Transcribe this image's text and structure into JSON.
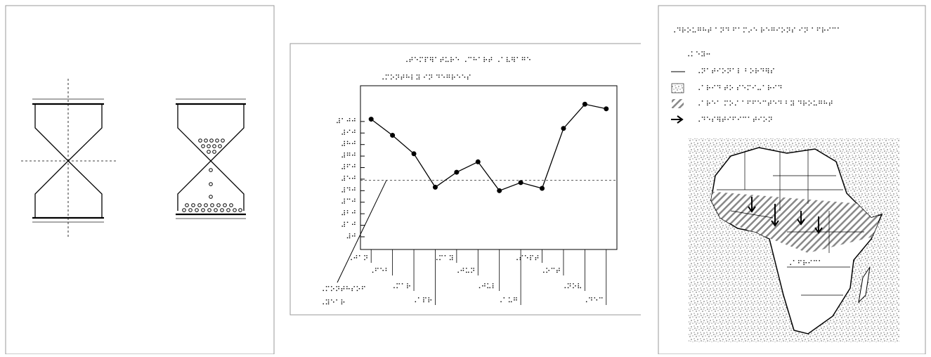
{
  "chart_data": {
    "type": "line",
    "title": "⠠⠞⠑⠍⠏⠻⠁⠞⠥⠗⠑ ⠠⠉⠓⠁⠗⠞ ⠠⠁⠧⠻⠁⠛⠑",
    "subtitle": "⠠⠍⠕⠝⠞⠓⠇⠽ ⠊⠝ ⠙⠑⠛⠗⠑⠑⠎",
    "xlabel_lines": [
      "⠠⠍⠕⠝⠞⠓⠎⠕⠋",
      "⠠⠽⠑⠁⠗"
    ],
    "categories": [
      "⠠⠚⠁⠝",
      "⠠⠋⠑⠃",
      "⠠⠍⠁⠗",
      "⠠⠁⠏⠗",
      "⠠⠍⠁⠽",
      "⠠⠚⠥⠝",
      "⠠⠚⠥⠇",
      "⠠⠁⠥⠛",
      "⠠⠎⠑⠏⠞",
      "⠠⠕⠉⠞",
      "⠠⠝⠕⠧",
      "⠠⠙⠑⠉"
    ],
    "series": [
      {
        "color": "#000000",
        "values": [
          1020,
          880,
          720,
          430,
          560,
          650,
          400,
          470,
          420,
          940,
          1150,
          1110
        ]
      }
    ],
    "reference_line": 490,
    "ylim": [
      -110,
      1310
    ],
    "yticks": [
      {
        "value": 0,
        "label": "⠼⠚"
      },
      {
        "value": 100,
        "label": "⠼⠁⠚"
      },
      {
        "value": 200,
        "label": "⠼⠃⠚"
      },
      {
        "value": 300,
        "label": "⠼⠉⠚"
      },
      {
        "value": 400,
        "label": "⠼⠙⠚"
      },
      {
        "value": 500,
        "label": "⠼⠑⠚"
      },
      {
        "value": 600,
        "label": "⠼⠋⠚"
      },
      {
        "value": 700,
        "label": "⠼⠛⠚"
      },
      {
        "value": 800,
        "label": "⠼⠓⠚"
      },
      {
        "value": 900,
        "label": "⠼⠊⠚"
      },
      {
        "value": 1000,
        "label": "⠼⠁⠚⠚"
      }
    ]
  },
  "map_panel": {
    "title": "⠠⠙⠗⠕⠥⠛⠓⠞ ⠁⠝⠙ ⠋⠁⠍⠔⠑ ⠗⠑⠛⠊⠕⠝⠎ ⠊⠝ ⠁⠋⠗⠊⠉⠁",
    "legend_heading": "⠠⠅⠑⠽⠒",
    "legend_items": [
      "⠠⠝⠁⠞⠊⠕⠝⠁⠇ ⠃⠕⠗⠙⠻⠎",
      "⠠⠁⠗⠊⠙ ⠞⠕ ⠎⠑⠍⠊⠤⠁⠗⠊⠙",
      "⠠⠁⠗⠑⠁ ⠍⠕⠌ ⠁⠋⠋⠑⠉⠞⠑⠙ ⠃⠽ ⠙⠗⠕⠥⠛⠓⠞",
      "⠠⠙⠑⠎⠻⠞⠊⠋⠊⠉⠁⠞⠊⠕⠝"
    ],
    "map_label": "⠠⠁⠋⠗⠊⠉⠁"
  }
}
